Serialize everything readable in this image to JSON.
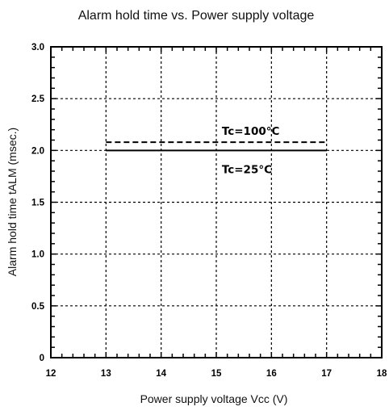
{
  "chart_data": {
    "type": "line",
    "title": "Alarm hold time vs. Power supply voltage",
    "xlabel": "Power supply voltage  Vcc (V)",
    "ylabel": "Alarm hold time  tALM (msec.)",
    "xlim": [
      12,
      18
    ],
    "ylim": [
      0,
      3.0
    ],
    "x_ticks": [
      12,
      13,
      14,
      15,
      16,
      17,
      18
    ],
    "x_tick_labels": [
      "12",
      "13",
      "14",
      "15",
      "16",
      "17",
      "18"
    ],
    "y_ticks": [
      0,
      0.5,
      1.0,
      1.5,
      2.0,
      2.5,
      3.0
    ],
    "y_tick_labels": [
      "0",
      "0.5",
      "1.0",
      "1.5",
      "2.0",
      "2.5",
      "3.0"
    ],
    "grid": true,
    "series": [
      {
        "name": "Tc=100°C",
        "line_style": "dashed",
        "color": "#000000",
        "x": [
          13,
          17
        ],
        "y": [
          2.08,
          2.08
        ]
      },
      {
        "name": "Tc=25°C",
        "line_style": "solid",
        "color": "#000000",
        "x": [
          13,
          17
        ],
        "y": [
          2.0,
          2.0
        ]
      }
    ],
    "annotations": [
      {
        "text": "Tc=100°C",
        "x": 15.1,
        "y": 2.19,
        "series": "Tc=100°C"
      },
      {
        "text": "Tc=25°C",
        "x": 15.1,
        "y": 1.82,
        "series": "Tc=25°C"
      }
    ]
  }
}
